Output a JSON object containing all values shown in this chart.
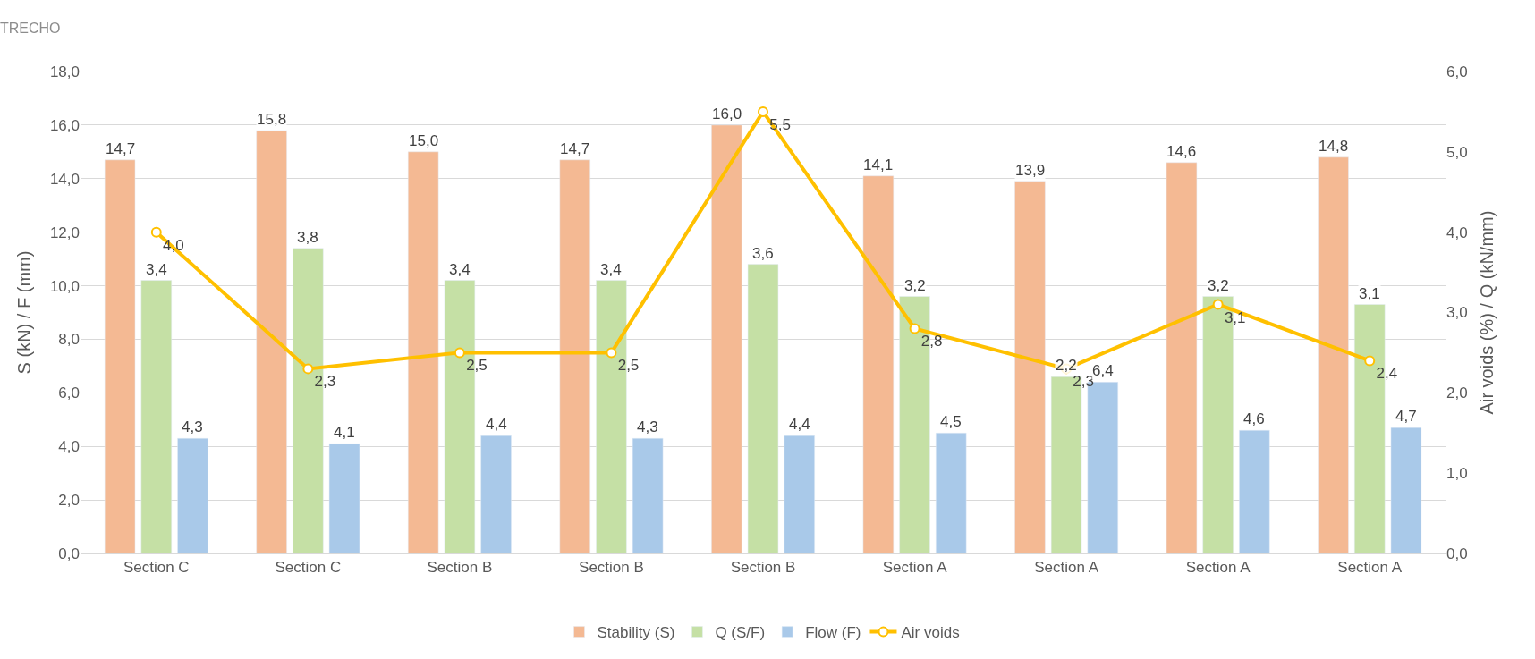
{
  "chart_data": {
    "type": "bar",
    "categories": [
      "Section C",
      "Section C",
      "Section B",
      "Section B",
      "Section B",
      "Section A",
      "Section A",
      "Section A",
      "Section A"
    ],
    "ylabel": "S (kN) / F (mm)",
    "y2label": "Air voids (%) / Q (kN/mm)",
    "ylim": [
      0,
      18
    ],
    "yticks": [
      {
        "value": 0,
        "label": "0,0"
      },
      {
        "value": 2,
        "label": "2,0"
      },
      {
        "value": 4,
        "label": "4,0"
      },
      {
        "value": 6,
        "label": "6,0"
      },
      {
        "value": 8,
        "label": "8,0"
      },
      {
        "value": 10,
        "label": "10,0"
      },
      {
        "value": 12,
        "label": "12,0"
      },
      {
        "value": 14,
        "label": "14,0"
      },
      {
        "value": 16,
        "label": "16,0"
      },
      {
        "value": 18,
        "label": "18,0"
      }
    ],
    "y2lim": [
      0,
      6
    ],
    "y2ticks": [
      {
        "value": 0,
        "label": "0,0"
      },
      {
        "value": 1,
        "label": "1,0"
      },
      {
        "value": 2,
        "label": "2,0"
      },
      {
        "value": 3,
        "label": "3,0"
      },
      {
        "value": 4,
        "label": "4,0"
      },
      {
        "value": 5,
        "label": "5,0"
      },
      {
        "value": 6,
        "label": "6,0"
      }
    ],
    "grid": "y",
    "legend": "bottom",
    "marker": "circle",
    "annotations": [
      "TRECHO"
    ],
    "series": [
      {
        "name": "Stability (S)",
        "color": "#f4b993",
        "values": [
          14.7,
          15.8,
          15.0,
          14.7,
          16.0,
          14.1,
          13.9,
          14.6,
          14.8
        ],
        "value_labels": [
          "14,7",
          "15,8",
          "15,0",
          "14,7",
          "16,0",
          "14,1",
          "13,9",
          "14,6",
          "14,8"
        ]
      },
      {
        "name": "Q (S/F)",
        "color": "#c5e0a5",
        "axis": "y2",
        "values": [
          3.4,
          3.8,
          3.4,
          3.4,
          3.6,
          3.2,
          2.2,
          3.2,
          3.1
        ],
        "value_labels": [
          "3,4",
          "3,8",
          "3,4",
          "3,4",
          "3,6",
          "3,2",
          "2,2",
          "3,2",
          "3,1"
        ]
      },
      {
        "name": "Flow (F)",
        "color": "#a9c9e9",
        "values": [
          4.3,
          4.1,
          4.4,
          4.3,
          4.4,
          4.5,
          6.4,
          4.6,
          4.7
        ],
        "value_labels": [
          "4,3",
          "4,1",
          "4,4",
          "4,3",
          "4,4",
          "4,5",
          "6,4",
          "4,6",
          "4,7"
        ]
      },
      {
        "name": "Air voids",
        "type": "line",
        "color": "#ffc000",
        "axis": "y2",
        "values": [
          4.0,
          2.3,
          2.5,
          2.5,
          5.5,
          2.8,
          2.3,
          3.1,
          2.4
        ],
        "value_labels": [
          "4,0",
          "2,3",
          "2,5",
          "2,5",
          "5,5",
          "2,8",
          "2,3",
          "3,1",
          "2,4"
        ]
      }
    ]
  }
}
